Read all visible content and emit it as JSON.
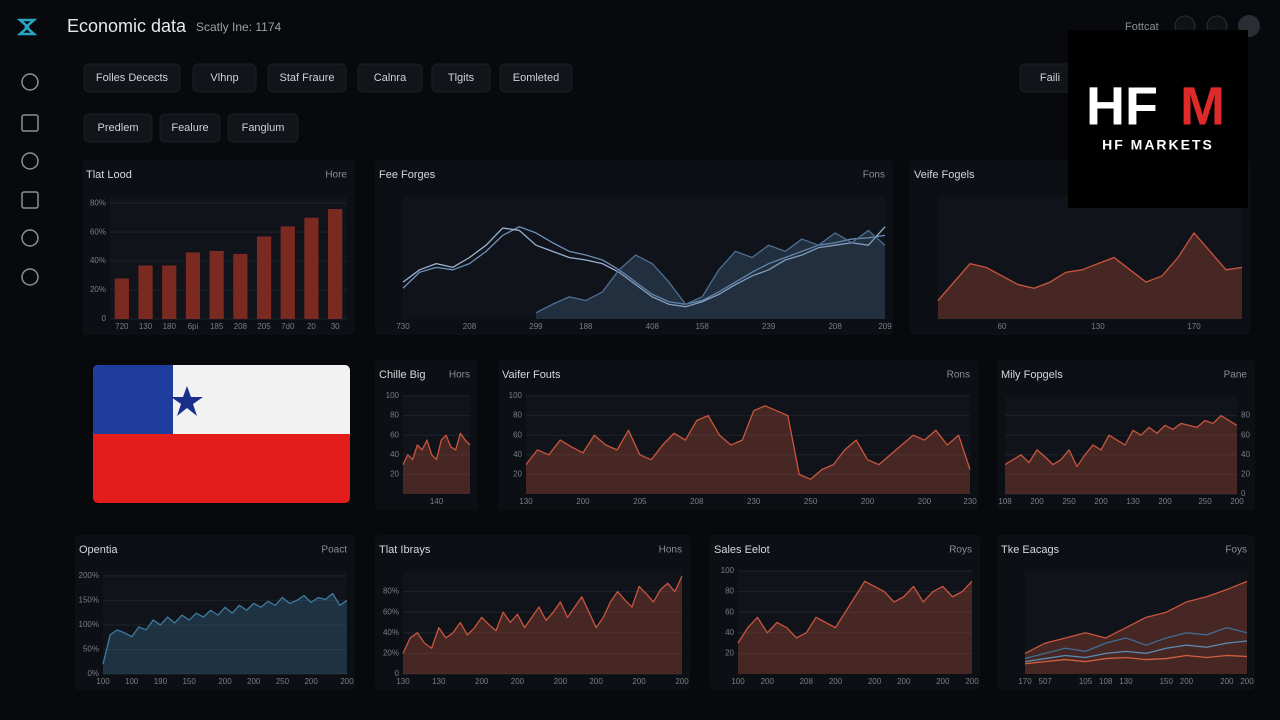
{
  "header": {
    "title": "Economic data",
    "subtitle": "Scatly Ine: 1174",
    "user": "Fottcat"
  },
  "nav": {
    "row1": [
      "Folles Decects",
      "Vlhnp",
      "Staf Fraure",
      "Calnra",
      "Tlgits",
      "Eomleted"
    ],
    "row2": [
      "Predlem",
      "Fealure",
      "Fanglum"
    ],
    "search": "Faili"
  },
  "logo": {
    "mark_left": "HF",
    "mark_right": "M",
    "name": "HF MARKETS"
  },
  "chart_data": [
    {
      "type": "bar",
      "title": "Tlat Lood",
      "note": "Hore",
      "color": "#7a2a20",
      "grid": true,
      "categories": [
        "720",
        "130",
        "180",
        "6pi",
        "185",
        "208",
        "205",
        "7d0",
        "20",
        "30"
      ],
      "values": [
        28,
        37,
        37,
        46,
        47,
        45,
        57,
        64,
        70,
        76
      ],
      "ylim": [
        0,
        85
      ],
      "yticks": [
        0,
        {
          "value": 20,
          "label": "20%"
        },
        {
          "value": 40,
          "label": "40%"
        },
        {
          "value": 60,
          "label": "60%"
        },
        {
          "value": 80,
          "label": "80%"
        }
      ]
    },
    {
      "type": "line",
      "title": "Fee Forges",
      "note": "Fons",
      "ylim": [
        0,
        100
      ],
      "series": [
        {
          "color": "#6e8fb5",
          "values": [
            25,
            38,
            42,
            40,
            45,
            55,
            68,
            75,
            70,
            62,
            55,
            52,
            48,
            40,
            30,
            20,
            14,
            12,
            15,
            22,
            30,
            38,
            45,
            50,
            55,
            60,
            62,
            65,
            66,
            68
          ]
        },
        {
          "color": "#9ab4d4",
          "values": [
            30,
            40,
            45,
            42,
            50,
            60,
            74,
            72,
            60,
            55,
            50,
            48,
            45,
            38,
            28,
            18,
            12,
            10,
            14,
            20,
            28,
            35,
            40,
            48,
            52,
            58,
            60,
            62,
            60,
            75
          ]
        },
        {
          "color": "#4d6f93",
          "fill": true,
          "values": [
            null,
            null,
            null,
            null,
            null,
            null,
            null,
            null,
            5,
            12,
            18,
            15,
            22,
            40,
            52,
            45,
            30,
            12,
            18,
            40,
            55,
            50,
            60,
            55,
            65,
            60,
            70,
            62,
            72,
            60
          ]
        }
      ],
      "xticks": [
        {
          "value": 0,
          "label": "730"
        },
        {
          "value": 4,
          "label": "208"
        },
        {
          "value": 8,
          "label": "299"
        },
        {
          "value": 11,
          "label": "188"
        },
        {
          "value": 15,
          "label": "408"
        },
        {
          "value": 18,
          "label": "158"
        },
        {
          "value": 22,
          "label": "239"
        },
        {
          "value": 26,
          "label": "208"
        },
        {
          "value": 29,
          "label": "209"
        }
      ]
    },
    {
      "type": "area",
      "title": "Veife Fogels",
      "color": "#c8553d",
      "ylim": [
        0,
        100
      ],
      "values": [
        15,
        30,
        45,
        42,
        35,
        28,
        25,
        30,
        38,
        40,
        45,
        50,
        40,
        30,
        35,
        50,
        70,
        55,
        40,
        42
      ],
      "xticks": [
        {
          "value": 4,
          "label": "60"
        },
        {
          "value": 10,
          "label": "130"
        },
        {
          "value": 16,
          "label": "170"
        }
      ]
    },
    {
      "type": "area",
      "title": "Chille Big",
      "note": "Hors",
      "color": "#c8553d",
      "grid": true,
      "ylim": [
        0,
        100
      ],
      "values": [
        30,
        40,
        35,
        50,
        45,
        55,
        40,
        35,
        55,
        60,
        48,
        45,
        62,
        55,
        50
      ],
      "yticks": [
        20,
        40,
        60,
        80,
        100
      ],
      "xticks": [
        {
          "value": 7,
          "label": "140"
        }
      ]
    },
    {
      "type": "area",
      "title": "Vaifer Fouts",
      "note": "Rons",
      "color": "#c8553d",
      "grid": true,
      "ylim": [
        0,
        100
      ],
      "values": [
        30,
        45,
        40,
        55,
        48,
        42,
        60,
        50,
        45,
        65,
        40,
        35,
        50,
        62,
        55,
        75,
        80,
        60,
        50,
        55,
        85,
        90,
        85,
        80,
        20,
        15,
        25,
        30,
        45,
        55,
        35,
        30,
        40,
        50,
        60,
        55,
        65,
        50,
        60,
        25
      ],
      "yticks": [
        20,
        40,
        60,
        80,
        100
      ],
      "xticks": [
        {
          "value": 0,
          "label": "130"
        },
        {
          "value": 5,
          "label": "200"
        },
        {
          "value": 10,
          "label": "205"
        },
        {
          "value": 15,
          "label": "208"
        },
        {
          "value": 20,
          "label": "230"
        },
        {
          "value": 25,
          "label": "250"
        },
        {
          "value": 30,
          "label": "200"
        },
        {
          "value": 35,
          "label": "200"
        },
        {
          "value": 39,
          "label": "230"
        }
      ]
    },
    {
      "type": "area",
      "title": "Mily Fopgels",
      "note": "Pane",
      "color": "#c8553d",
      "grid": true,
      "y_axis_side": "right",
      "ylim": [
        0,
        100
      ],
      "values": [
        30,
        35,
        40,
        32,
        45,
        38,
        30,
        35,
        45,
        28,
        40,
        50,
        45,
        60,
        55,
        50,
        65,
        60,
        68,
        62,
        70,
        66,
        72,
        70,
        68,
        75,
        72,
        80,
        75,
        70
      ],
      "yticks": [
        0,
        20,
        40,
        60,
        80
      ],
      "xticks": [
        {
          "value": 0,
          "label": "108"
        },
        {
          "value": 4,
          "label": "200"
        },
        {
          "value": 8,
          "label": "250"
        },
        {
          "value": 12,
          "label": "200"
        },
        {
          "value": 16,
          "label": "130"
        },
        {
          "value": 20,
          "label": "200"
        },
        {
          "value": 25,
          "label": "250"
        },
        {
          "value": 29,
          "label": "200"
        }
      ]
    },
    {
      "type": "area",
      "title": "Opentia",
      "note": "Poact",
      "color": "#3f7aa0",
      "grid": true,
      "ylim": [
        0,
        210
      ],
      "values": [
        20,
        80,
        90,
        84,
        76,
        96,
        90,
        110,
        100,
        116,
        104,
        120,
        110,
        124,
        116,
        130,
        120,
        136,
        124,
        140,
        130,
        144,
        136,
        148,
        140,
        156,
        144,
        150,
        160,
        146,
        156,
        152,
        164,
        140,
        150
      ],
      "yticks": [
        {
          "value": 0,
          "label": "0%"
        },
        {
          "value": 50,
          "label": "50%"
        },
        {
          "value": 100,
          "label": "100%"
        },
        {
          "value": 150,
          "label": "150%"
        },
        {
          "value": 200,
          "label": "200%"
        }
      ],
      "xticks": [
        {
          "value": 0,
          "label": "100"
        },
        {
          "value": 4,
          "label": "100"
        },
        {
          "value": 8,
          "label": "190"
        },
        {
          "value": 12,
          "label": "150"
        },
        {
          "value": 17,
          "label": "200"
        },
        {
          "value": 21,
          "label": "200"
        },
        {
          "value": 25,
          "label": "250"
        },
        {
          "value": 29,
          "label": "200"
        },
        {
          "value": 34,
          "label": "200"
        }
      ]
    },
    {
      "type": "area",
      "title": "Tlat Ibrays",
      "note": "Hons",
      "color": "#c8553d",
      "grid": true,
      "ylim": [
        0,
        100
      ],
      "values": [
        20,
        35,
        40,
        30,
        25,
        45,
        35,
        40,
        50,
        38,
        45,
        55,
        48,
        42,
        60,
        50,
        58,
        45,
        55,
        65,
        52,
        60,
        70,
        55,
        65,
        75,
        60,
        45,
        55,
        70,
        80,
        72,
        65,
        85,
        78,
        70,
        82,
        88,
        80,
        95
      ],
      "yticks": [
        0,
        {
          "value": 20,
          "label": "20%"
        },
        {
          "value": 40,
          "label": "40%"
        },
        {
          "value": 60,
          "label": "60%"
        },
        {
          "value": 80,
          "label": "80%"
        }
      ],
      "xticks": [
        {
          "value": 0,
          "label": "130"
        },
        {
          "value": 5,
          "label": "130"
        },
        {
          "value": 11,
          "label": "200"
        },
        {
          "value": 16,
          "label": "200"
        },
        {
          "value": 22,
          "label": "200"
        },
        {
          "value": 27,
          "label": "200"
        },
        {
          "value": 33,
          "label": "200"
        },
        {
          "value": 39,
          "label": "200"
        }
      ]
    },
    {
      "type": "area",
      "title": "Sales Eelot",
      "note": "Roys",
      "color": "#c8553d",
      "grid": true,
      "ylim": [
        0,
        100
      ],
      "values": [
        30,
        45,
        55,
        40,
        50,
        45,
        35,
        40,
        55,
        50,
        45,
        60,
        75,
        90,
        85,
        80,
        70,
        75,
        85,
        70,
        80,
        85,
        75,
        80,
        90
      ],
      "yticks": [
        20,
        40,
        60,
        80,
        100
      ],
      "xticks": [
        {
          "value": 0,
          "label": "100"
        },
        {
          "value": 3,
          "label": "200"
        },
        {
          "value": 7,
          "label": "208"
        },
        {
          "value": 10,
          "label": "200"
        },
        {
          "value": 14,
          "label": "200"
        },
        {
          "value": 17,
          "label": "200"
        },
        {
          "value": 21,
          "label": "200"
        },
        {
          "value": 24,
          "label": "200"
        }
      ]
    },
    {
      "type": "line",
      "title": "Tke Eacags",
      "note": "Foys",
      "ylim": [
        0,
        100
      ],
      "series": [
        {
          "color": "#c8553d",
          "fill": true,
          "values": [
            20,
            30,
            35,
            40,
            35,
            45,
            55,
            60,
            70,
            75,
            82,
            90
          ]
        },
        {
          "color": "#3f6d95",
          "values": [
            15,
            20,
            25,
            22,
            30,
            35,
            28,
            35,
            40,
            38,
            45,
            40
          ]
        },
        {
          "color": "#5a8ab5",
          "values": [
            12,
            15,
            18,
            16,
            20,
            22,
            20,
            25,
            28,
            26,
            30,
            32
          ]
        },
        {
          "color": "#d06040",
          "values": [
            10,
            12,
            14,
            12,
            15,
            16,
            14,
            15,
            18,
            16,
            18,
            17
          ]
        }
      ],
      "xticks": [
        {
          "value": 0,
          "label": "170"
        },
        {
          "value": 1,
          "label": "507"
        },
        {
          "value": 3,
          "label": "105"
        },
        {
          "value": 4,
          "label": "108"
        },
        {
          "value": 5,
          "label": "130"
        },
        {
          "value": 7,
          "label": "150"
        },
        {
          "value": 8,
          "label": "200"
        },
        {
          "value": 10,
          "label": "200"
        },
        {
          "value": 11,
          "label": "200"
        }
      ]
    }
  ]
}
